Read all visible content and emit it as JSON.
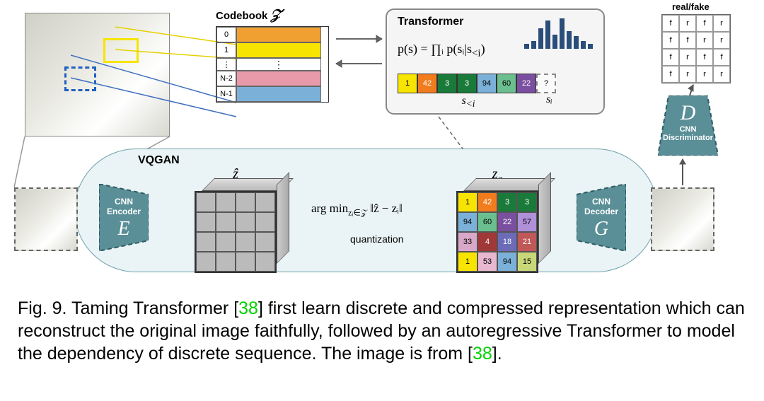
{
  "vqgan": {
    "label": "VQGAN",
    "bg": "#eaf3f5",
    "border": "#6da2aa"
  },
  "encoder": {
    "title": "CNN\nEncoder",
    "letter": "E",
    "fill": "#5a8f97",
    "stroke": "#2d5d64"
  },
  "decoder": {
    "title": "CNN\nDecoder",
    "letter": "G",
    "fill": "#5a8f97",
    "stroke": "#2d5d64"
  },
  "discriminator": {
    "title": "CNN\nDiscriminator",
    "letter": "D",
    "fill": "#5a8f97",
    "stroke": "#2d5d64"
  },
  "quant": {
    "eq": "arg min",
    "sub": "zᵢ∈𝒵",
    "norm": "‖ẑ − zᵢ‖",
    "label": "quantization"
  },
  "cube_zhat": {
    "label": "ẑ",
    "grid_color": "#bbb"
  },
  "cube_zq": {
    "label": "z_q",
    "cells": [
      {
        "v": "1",
        "c": "#f7e400"
      },
      {
        "v": "42",
        "c": "#f07c1e"
      },
      {
        "v": "3",
        "c": "#1a7a3a"
      },
      {
        "v": "3",
        "c": "#1a7a3a"
      },
      {
        "v": "94",
        "c": "#7bb0d8"
      },
      {
        "v": "60",
        "c": "#6bbf8e"
      },
      {
        "v": "22",
        "c": "#7a4fa0"
      },
      {
        "v": "57",
        "c": "#b090d8"
      },
      {
        "v": "33",
        "c": "#d9a8c8"
      },
      {
        "v": "4",
        "c": "#a03838"
      },
      {
        "v": "18",
        "c": "#6b6bb8"
      },
      {
        "v": "21",
        "c": "#c05858"
      },
      {
        "v": "1",
        "c": "#f7e400"
      },
      {
        "v": "53",
        "c": "#e8b8d0"
      },
      {
        "v": "94",
        "c": "#7bb0d8"
      },
      {
        "v": "15",
        "c": "#c8d878"
      }
    ]
  },
  "codebook": {
    "title": "Codebook",
    "z": "𝒵",
    "rows": [
      {
        "idx": "0",
        "c": "#f0a030"
      },
      {
        "idx": "1",
        "c": "#f7e400"
      },
      {
        "idx": "⋮",
        "c": "#ffffff"
      },
      {
        "idx": "N-2",
        "c": "#e89aaa"
      },
      {
        "idx": "N-1",
        "c": "#7bb0d8"
      }
    ]
  },
  "transformer": {
    "title": "Transformer",
    "eq_lhs": "p(s) = ∏ᵢ p(sᵢ|s",
    "eq_sub": "<i",
    "eq_rhs": ")",
    "seq": [
      {
        "v": "1",
        "c": "#f7e400"
      },
      {
        "v": "42",
        "c": "#f07c1e"
      },
      {
        "v": "3",
        "c": "#1a7a3a"
      },
      {
        "v": "3",
        "c": "#1a7a3a"
      },
      {
        "v": "94",
        "c": "#7bb0d8"
      },
      {
        "v": "60",
        "c": "#6bbf8e"
      },
      {
        "v": "22",
        "c": "#7a4fa0"
      },
      {
        "v": "?",
        "c": "ghost"
      }
    ],
    "brace": "s",
    "brace_sub": "<i",
    "si": "sᵢ",
    "bars": [
      0.15,
      0.25,
      0.65,
      0.9,
      0.45,
      0.95,
      0.55,
      0.4,
      0.25,
      0.15
    ]
  },
  "realfake": {
    "title": "real/fake",
    "cells": [
      "f",
      "r",
      "f",
      "r",
      "f",
      "f",
      "r",
      "r",
      "f",
      "r",
      "f",
      "f",
      "f",
      "r",
      "r",
      "r"
    ]
  },
  "caption": {
    "prefix": "Fig. 9.  Taming Transformer [",
    "ref1": "38",
    "mid": "] first learn discrete and compressed representation which can reconstruct the original image faithfully, followed by an autoregressive Transformer to model the dependency of discrete sequence. The image is from [",
    "ref2": "38",
    "suffix": "]."
  }
}
